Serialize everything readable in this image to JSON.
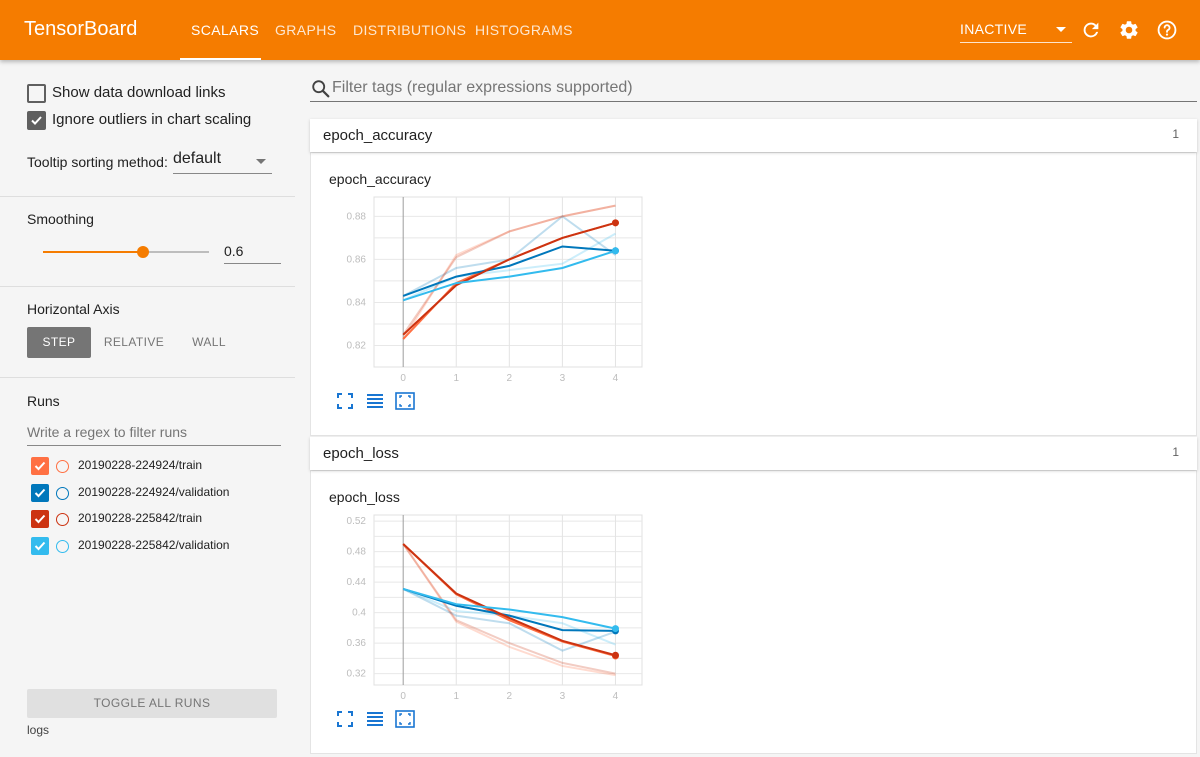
{
  "app": {
    "title": "TensorBoard"
  },
  "nav": {
    "tabs": [
      {
        "label": "SCALARS",
        "active": true
      },
      {
        "label": "GRAPHS",
        "active": false
      },
      {
        "label": "DISTRIBUTIONS",
        "active": false
      },
      {
        "label": "HISTOGRAMS",
        "active": false
      }
    ],
    "status": "INACTIVE",
    "icons": [
      "refresh-icon",
      "settings-icon",
      "help-icon"
    ]
  },
  "sidebar": {
    "options": [
      {
        "label": "Show data download links",
        "checked": false
      },
      {
        "label": "Ignore outliers in chart scaling",
        "checked": true
      }
    ],
    "tooltip": {
      "label": "Tooltip sorting method:",
      "value": "default"
    },
    "smoothing": {
      "title": "Smoothing",
      "value": "0.6",
      "fraction": 0.6
    },
    "horizontal_axis": {
      "title": "Horizontal Axis",
      "options": [
        {
          "label": "STEP",
          "active": true
        },
        {
          "label": "RELATIVE",
          "active": false
        },
        {
          "label": "WALL",
          "active": false
        }
      ]
    },
    "runs": {
      "title": "Runs",
      "filter_placeholder": "Write a regex to filter runs",
      "items": [
        {
          "label": "20190228-224924/train",
          "color": "#ff7043"
        },
        {
          "label": "20190228-224924/validation",
          "color": "#0077bb"
        },
        {
          "label": "20190228-225842/train",
          "color": "#cc3311"
        },
        {
          "label": "20190228-225842/validation",
          "color": "#33bbee"
        }
      ],
      "toggle_label": "TOGGLE ALL RUNS",
      "logdir": "logs"
    }
  },
  "main": {
    "filter_placeholder": "Filter tags (regular expressions supported)",
    "cards": [
      {
        "header": "epoch_accuracy",
        "count": "1",
        "chart_title": "epoch_accuracy"
      },
      {
        "header": "epoch_loss",
        "count": "1",
        "chart_title": "epoch_loss"
      }
    ]
  },
  "chart_data": [
    {
      "type": "line",
      "title": "epoch_accuracy",
      "xlabel": "",
      "ylabel": "",
      "x": [
        0,
        1,
        2,
        3,
        4
      ],
      "xticks": [
        "0",
        "1",
        "2",
        "3",
        "4"
      ],
      "yticks": [
        "0.82",
        "0.84",
        "0.86",
        "0.88"
      ],
      "ytick_values": [
        0.82,
        0.84,
        0.86,
        0.88
      ],
      "ylim": [
        0.81,
        0.889
      ],
      "xlim": [
        -0.55,
        4.5
      ],
      "grid": true,
      "series": [
        {
          "color": "#ff7043",
          "values": [
            0.823,
            0.849,
            0.86,
            0.87,
            0.877
          ],
          "raw": [
            0.823,
            0.862,
            0.873,
            0.88,
            0.885
          ]
        },
        {
          "color": "#0077bb",
          "values": [
            0.843,
            0.852,
            0.857,
            0.866,
            0.864
          ],
          "raw": [
            0.843,
            0.856,
            0.86,
            0.88,
            0.862
          ]
        },
        {
          "color": "#cc3311",
          "values": [
            0.825,
            0.848,
            0.86,
            0.87,
            0.877
          ],
          "raw": [
            0.825,
            0.861,
            0.873,
            0.88,
            0.885
          ]
        },
        {
          "color": "#33bbee",
          "values": [
            0.841,
            0.849,
            0.852,
            0.856,
            0.864
          ],
          "raw": [
            0.841,
            0.852,
            0.855,
            0.858,
            0.872
          ]
        }
      ]
    },
    {
      "type": "line",
      "title": "epoch_loss",
      "xlabel": "",
      "ylabel": "",
      "x": [
        0,
        1,
        2,
        3,
        4
      ],
      "xticks": [
        "0",
        "1",
        "2",
        "3",
        "4"
      ],
      "yticks": [
        "0.32",
        "0.36",
        "0.4",
        "0.44",
        "0.48",
        "0.52"
      ],
      "ytick_values": [
        0.32,
        0.36,
        0.4,
        0.44,
        0.48,
        0.52
      ],
      "ylim": [
        0.305,
        0.528
      ],
      "xlim": [
        -0.55,
        4.5
      ],
      "grid": true,
      "series": [
        {
          "color": "#ff7043",
          "values": [
            0.49,
            0.424,
            0.39,
            0.362,
            0.343
          ],
          "raw": [
            0.49,
            0.388,
            0.355,
            0.33,
            0.318
          ]
        },
        {
          "color": "#0077bb",
          "values": [
            0.431,
            0.409,
            0.396,
            0.377,
            0.376
          ],
          "raw": [
            0.431,
            0.396,
            0.386,
            0.35,
            0.375
          ]
        },
        {
          "color": "#cc3311",
          "values": [
            0.49,
            0.425,
            0.393,
            0.363,
            0.344
          ],
          "raw": [
            0.49,
            0.39,
            0.36,
            0.334,
            0.32
          ]
        },
        {
          "color": "#33bbee",
          "values": [
            0.431,
            0.411,
            0.404,
            0.394,
            0.379
          ],
          "raw": [
            0.431,
            0.402,
            0.396,
            0.386,
            0.358
          ]
        }
      ]
    }
  ]
}
